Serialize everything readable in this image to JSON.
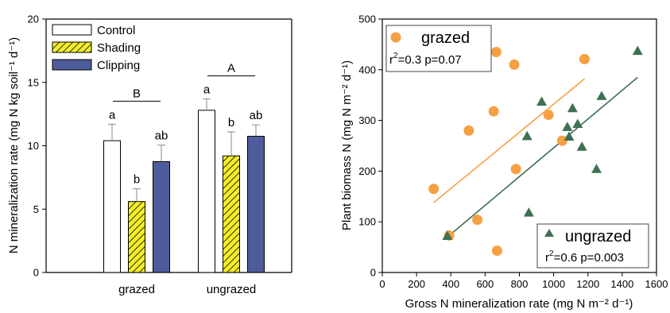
{
  "chart_data": [
    {
      "type": "bar",
      "ylabel": "N mineralization rate (mg N kg soil⁻¹ d⁻¹)",
      "ylim": [
        0,
        20
      ],
      "yticks": [
        "0",
        "5",
        "10",
        "15",
        "20"
      ],
      "categories": [
        "grazed",
        "ungrazed"
      ],
      "series": [
        {
          "name": "Control",
          "values": [
            10.4,
            12.8
          ],
          "errors": [
            1.3,
            0.9
          ],
          "letters": [
            "a",
            "a"
          ],
          "color": "#ffffff",
          "pattern": "none"
        },
        {
          "name": "Shading",
          "values": [
            5.6,
            9.2
          ],
          "errors": [
            1.0,
            1.9
          ],
          "letters": [
            "b",
            "b"
          ],
          "color": "#f2ee2a",
          "pattern": "hatch"
        },
        {
          "name": "Clipping",
          "values": [
            8.75,
            10.75
          ],
          "errors": [
            1.3,
            0.9
          ],
          "letters": [
            "ab",
            "ab"
          ],
          "color": "#4e5c9b",
          "pattern": "none"
        }
      ],
      "group_letters": [
        "B",
        "A"
      ],
      "legend": "top-left"
    },
    {
      "type": "scatter",
      "xlabel": "Gross N mineralization rate (mg N m⁻² d⁻¹)",
      "ylabel": "Plant biomass N (mg N m⁻² d⁻¹)",
      "xlim": [
        0,
        1600
      ],
      "ylim": [
        0,
        500
      ],
      "xticks": [
        "0",
        "200",
        "400",
        "600",
        "800",
        "1000",
        "1200",
        "1400",
        "1600"
      ],
      "yticks": [
        "0",
        "100",
        "200",
        "300",
        "400",
        "500"
      ],
      "series": [
        {
          "name": "grazed",
          "marker": "circle",
          "color": "#f5a042",
          "x": [
            300,
            390,
            505,
            555,
            650,
            665,
            670,
            770,
            780,
            970,
            1050,
            1180
          ],
          "y": [
            165,
            73,
            280,
            104,
            318,
            435,
            43,
            410,
            204,
            311,
            260,
            421
          ],
          "fit": {
            "x": [
              300,
              1180
            ],
            "y": [
              138,
              382
            ]
          },
          "stats": "r²=0.3 p=0.07",
          "stats_sup": "2",
          "stats_pre": "r",
          "stats_post": "=0.3 p=0.07"
        },
        {
          "name": "ungrazed",
          "marker": "triangle",
          "color": "#3e7052",
          "x": [
            380,
            845,
            855,
            930,
            970,
            1080,
            1090,
            1110,
            1140,
            1165,
            1250,
            1280,
            1490
          ],
          "y": [
            72,
            269,
            118,
            337,
            74,
            287,
            268,
            324,
            293,
            248,
            204,
            348,
            437
          ],
          "fit": {
            "x": [
              380,
              1490
            ],
            "y": [
              70,
              385
            ]
          },
          "stats_pre": "r",
          "stats_sup": "2",
          "stats_post": "=0.6 p=0.003"
        }
      ],
      "legend": "top-left and bottom-right"
    }
  ]
}
